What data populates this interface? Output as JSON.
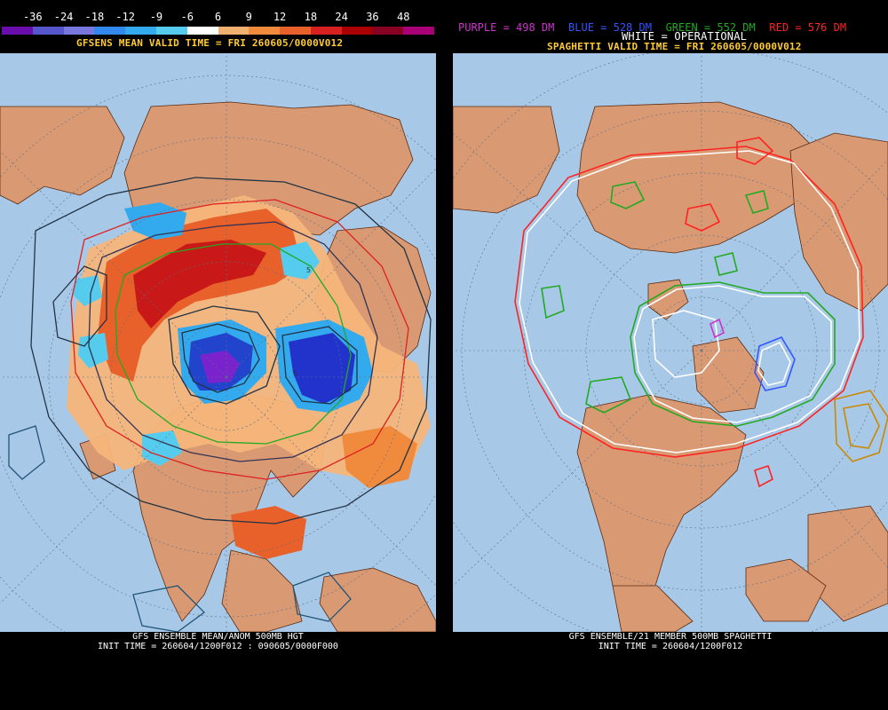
{
  "left_panel": {
    "colorbar": {
      "labels": [
        "-36",
        "-24",
        "-18",
        "-12",
        "-9",
        "-6",
        "6",
        "9",
        "12",
        "18",
        "24",
        "36",
        "48"
      ],
      "colors": [
        "#6a0dad",
        "#5555cc",
        "#7777dd",
        "#3388ee",
        "#33aaee",
        "#55ccee",
        "#ffffff",
        "#f0b070",
        "#f08a3c",
        "#e8602a",
        "#d82020",
        "#aa0000",
        "#880022",
        "#aa0077"
      ]
    },
    "title": "GFSENS MEAN VALID TIME = FRI 260605/0000V012",
    "footer_line1": "GFS ENSEMBLE MEAN/ANOM 500MB HGT",
    "footer_line2": "INIT TIME = 260604/1200F012 : 090605/0000F000",
    "title_color": "#ffcc33"
  },
  "right_panel": {
    "legend": [
      {
        "text": "PURPLE = 498 DM",
        "color": "#cc33cc"
      },
      {
        "text": "BLUE = 528 DM",
        "color": "#3355ff"
      },
      {
        "text": "GREEN = 552 DM",
        "color": "#22aa22"
      },
      {
        "text": "RED = 576 DM",
        "color": "#ff2222"
      }
    ],
    "legend_line2": "WHITE = OPERATIONAL",
    "title": "SPAGHETTI VALID TIME = FRI 260605/0000V012",
    "footer_line1": "GFS ENSEMBLE/21 MEMBER 500MB SPAGHETTI",
    "footer_line2": "INIT TIME = 260604/1200F012",
    "title_color": "#ffcc33"
  },
  "colors": {
    "ocean": "#a8c8e8",
    "land": "#d99a73",
    "border": "#5a2a10",
    "grid": "#5c6f88",
    "orange_contour": "#b87a1a"
  }
}
